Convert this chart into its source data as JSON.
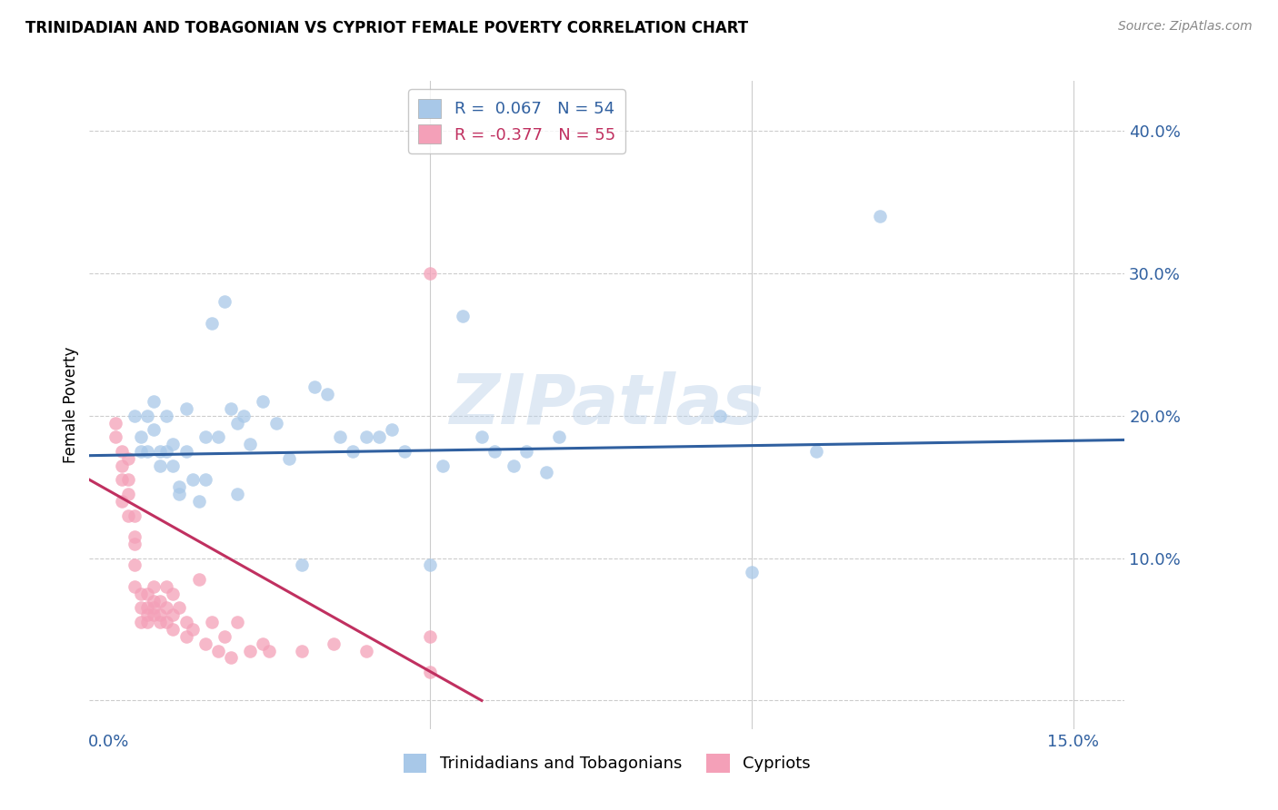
{
  "title": "TRINIDADIAN AND TOBAGONIAN VS CYPRIOT FEMALE POVERTY CORRELATION CHART",
  "source": "Source: ZipAtlas.com",
  "ylabel": "Female Poverty",
  "blue_R": 0.067,
  "blue_N": 54,
  "pink_R": -0.377,
  "pink_N": 55,
  "blue_color": "#a8c8e8",
  "pink_color": "#f4a0b8",
  "blue_line_color": "#3060a0",
  "pink_line_color": "#c03060",
  "legend_label_blue": "Trinidadians and Tobagonians",
  "legend_label_pink": "Cypriots",
  "watermark": "ZIPatlas",
  "xlim": [
    -0.003,
    0.158
  ],
  "ylim": [
    -0.02,
    0.435
  ],
  "x_ticks": [
    0.0,
    0.05,
    0.1,
    0.15
  ],
  "x_tick_labels": [
    "0.0%",
    "",
    "",
    "15.0%"
  ],
  "y_ticks": [
    0.0,
    0.1,
    0.2,
    0.3,
    0.4
  ],
  "y_tick_labels": [
    "",
    "10.0%",
    "20.0%",
    "30.0%",
    "40.0%"
  ],
  "blue_dots_x": [
    0.004,
    0.005,
    0.005,
    0.006,
    0.006,
    0.007,
    0.007,
    0.008,
    0.008,
    0.009,
    0.009,
    0.01,
    0.01,
    0.011,
    0.011,
    0.012,
    0.012,
    0.013,
    0.014,
    0.015,
    0.015,
    0.016,
    0.017,
    0.018,
    0.019,
    0.02,
    0.02,
    0.021,
    0.022,
    0.024,
    0.026,
    0.028,
    0.03,
    0.032,
    0.034,
    0.036,
    0.038,
    0.04,
    0.042,
    0.044,
    0.046,
    0.05,
    0.052,
    0.055,
    0.058,
    0.06,
    0.063,
    0.065,
    0.068,
    0.07,
    0.095,
    0.1,
    0.11,
    0.12
  ],
  "blue_dots_y": [
    0.2,
    0.185,
    0.175,
    0.2,
    0.175,
    0.19,
    0.21,
    0.175,
    0.165,
    0.2,
    0.175,
    0.165,
    0.18,
    0.15,
    0.145,
    0.175,
    0.205,
    0.155,
    0.14,
    0.155,
    0.185,
    0.265,
    0.185,
    0.28,
    0.205,
    0.145,
    0.195,
    0.2,
    0.18,
    0.21,
    0.195,
    0.17,
    0.095,
    0.22,
    0.215,
    0.185,
    0.175,
    0.185,
    0.185,
    0.19,
    0.175,
    0.095,
    0.165,
    0.27,
    0.185,
    0.175,
    0.165,
    0.175,
    0.16,
    0.185,
    0.2,
    0.09,
    0.175,
    0.34
  ],
  "pink_dots_x": [
    0.001,
    0.001,
    0.002,
    0.002,
    0.002,
    0.002,
    0.003,
    0.003,
    0.003,
    0.003,
    0.004,
    0.004,
    0.004,
    0.004,
    0.004,
    0.005,
    0.005,
    0.005,
    0.006,
    0.006,
    0.006,
    0.006,
    0.007,
    0.007,
    0.007,
    0.007,
    0.008,
    0.008,
    0.008,
    0.009,
    0.009,
    0.009,
    0.01,
    0.01,
    0.01,
    0.011,
    0.012,
    0.012,
    0.013,
    0.014,
    0.015,
    0.016,
    0.017,
    0.018,
    0.019,
    0.02,
    0.022,
    0.024,
    0.025,
    0.03,
    0.035,
    0.04,
    0.05,
    0.05,
    0.05
  ],
  "pink_dots_y": [
    0.185,
    0.195,
    0.14,
    0.155,
    0.165,
    0.175,
    0.13,
    0.145,
    0.155,
    0.17,
    0.08,
    0.095,
    0.11,
    0.115,
    0.13,
    0.055,
    0.065,
    0.075,
    0.055,
    0.06,
    0.065,
    0.075,
    0.06,
    0.065,
    0.07,
    0.08,
    0.055,
    0.06,
    0.07,
    0.055,
    0.065,
    0.08,
    0.05,
    0.06,
    0.075,
    0.065,
    0.045,
    0.055,
    0.05,
    0.085,
    0.04,
    0.055,
    0.035,
    0.045,
    0.03,
    0.055,
    0.035,
    0.04,
    0.035,
    0.035,
    0.04,
    0.035,
    0.02,
    0.045,
    0.3
  ],
  "blue_line_x0": -0.003,
  "blue_line_x1": 0.158,
  "blue_line_y0": 0.172,
  "blue_line_y1": 0.183,
  "pink_line_x0": -0.003,
  "pink_line_x1": 0.058,
  "pink_line_y0": 0.155,
  "pink_line_y1": 0.0
}
